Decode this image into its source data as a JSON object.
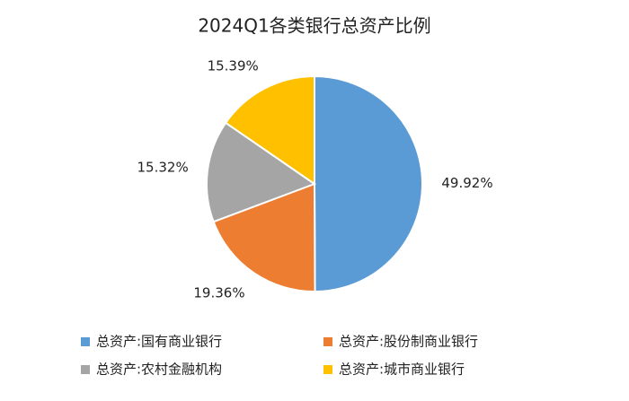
{
  "chart_data": {
    "type": "pie",
    "title": "2024Q1各类银行总资产比例",
    "categories": [
      "总资产:国有商业银行",
      "总资产:股份制商业银行",
      "总资产:农村金融机构",
      "总资产:城市商业银行"
    ],
    "values": [
      49.92,
      19.36,
      15.32,
      15.39
    ],
    "value_labels": [
      "49.92%",
      "19.36%",
      "15.32%",
      "15.39%"
    ],
    "colors": [
      "#5b9bd5",
      "#ed7d31",
      "#a5a5a5",
      "#ffc000"
    ]
  }
}
